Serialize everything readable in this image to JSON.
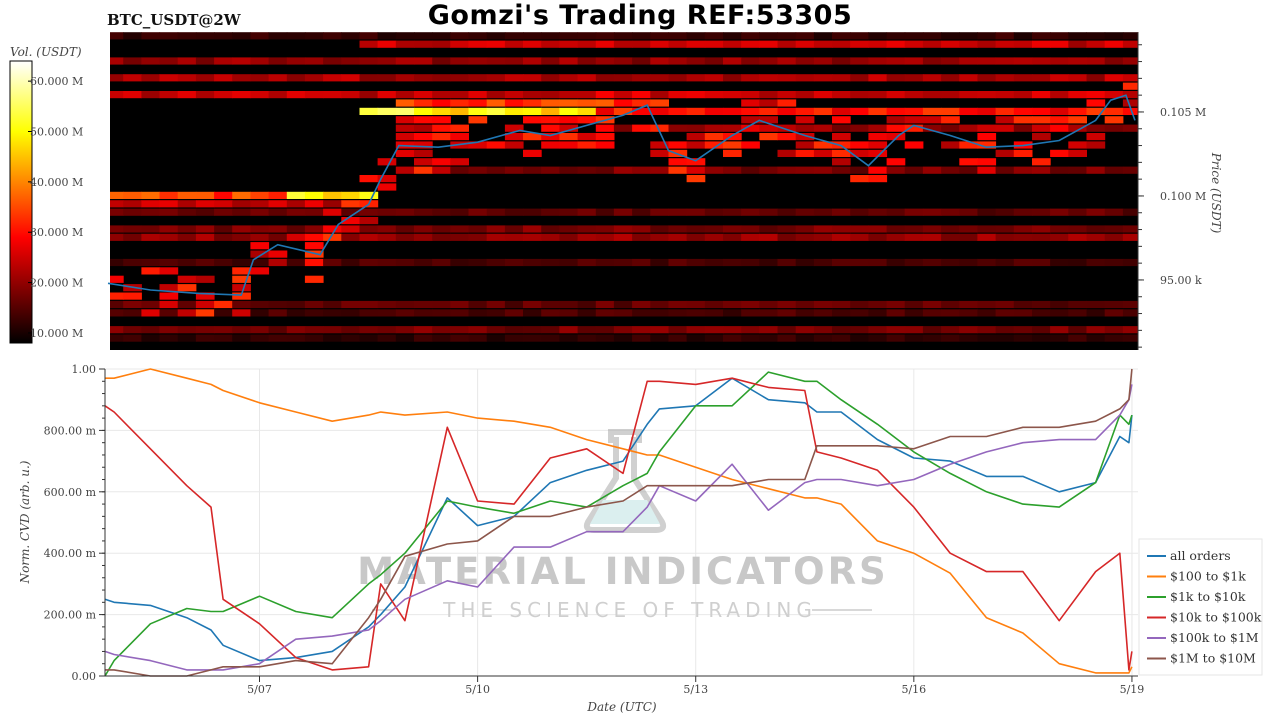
{
  "header": {
    "title": "Gomzi's Trading REF:53305",
    "symbol": "BTC_USDT@2W"
  },
  "watermark": {
    "brand": "MATERIAL INDICATORS",
    "tagline": "THE SCIENCE OF TRADING"
  },
  "chart_data": [
    {
      "type": "heatmap",
      "ylabel": "Price (USDT)",
      "ylim": [
        90830,
        109700
      ],
      "xlim": [
        "5/04 21:00",
        "5/19 02:00"
      ],
      "yticks": [
        {
          "value": 95000,
          "label": "95.00 k"
        },
        {
          "value": 100000,
          "label": "0.100 M"
        },
        {
          "value": 105000,
          "label": "0.105 M"
        }
      ],
      "colorbar": {
        "label": "Vol. (USDT)",
        "colormap": "hot",
        "range": [
          8000000,
          64000000
        ],
        "ticks": [
          {
            "value": 10000000,
            "label": "10.000 M"
          },
          {
            "value": 20000000,
            "label": "20.000 M"
          },
          {
            "value": 30000000,
            "label": "30.000 M"
          },
          {
            "value": 40000000,
            "label": "40.000 M"
          },
          {
            "value": 50000000,
            "label": "50.000 M"
          },
          {
            "value": 60000000,
            "label": "60.000 M"
          }
        ]
      },
      "liquidity_bands": [
        {
          "price": 109500,
          "from": "5/04 21:00",
          "to": "5/19 02:00",
          "vol": 12000000
        },
        {
          "price": 109000,
          "from": "5/08 12:00",
          "to": "5/19 02:00",
          "vol": 24000000
        },
        {
          "price": 108000,
          "from": "5/04 21:00",
          "to": "5/19 02:00",
          "vol": 20000000
        },
        {
          "price": 107000,
          "from": "5/04 21:00",
          "to": "5/19 02:00",
          "vol": 22000000
        },
        {
          "price": 106000,
          "from": "5/04 21:00",
          "to": "5/19 02:00",
          "vol": 24000000
        },
        {
          "price": 105500,
          "from": "5/09 00:00",
          "to": "5/12 12:00",
          "vol": 32000000
        },
        {
          "price": 105000,
          "from": "5/08 12:00",
          "to": "5/11 12:00",
          "vol": 50000000
        },
        {
          "price": 105000,
          "from": "5/11 12:00",
          "to": "5/19 02:00",
          "vol": 30000000
        },
        {
          "price": 104000,
          "from": "5/12 00:00",
          "to": "5/19 02:00",
          "vol": 20000000
        },
        {
          "price": 101500,
          "from": "5/09 12:00",
          "to": "5/19 02:00",
          "vol": 18000000
        },
        {
          "price": 100000,
          "from": "5/04 21:00",
          "to": "5/07 12:00",
          "vol": 34000000
        },
        {
          "price": 100000,
          "from": "5/07 12:00",
          "to": "5/08 12:00",
          "vol": 48000000
        },
        {
          "price": 99500,
          "from": "5/04 21:00",
          "to": "5/08 12:00",
          "vol": 24000000
        },
        {
          "price": 99000,
          "from": "5/04 21:00",
          "to": "5/19 02:00",
          "vol": 16000000
        },
        {
          "price": 98000,
          "from": "5/04 21:00",
          "to": "5/19 02:00",
          "vol": 18000000
        },
        {
          "price": 97500,
          "from": "5/04 21:00",
          "to": "5/19 02:00",
          "vol": 20000000
        },
        {
          "price": 96000,
          "from": "5/04 21:00",
          "to": "5/19 02:00",
          "vol": 14000000
        },
        {
          "price": 93500,
          "from": "5/04 21:00",
          "to": "5/19 02:00",
          "vol": 16000000
        },
        {
          "price": 93000,
          "from": "5/04 21:00",
          "to": "5/19 02:00",
          "vol": 14000000
        },
        {
          "price": 92000,
          "from": "5/04 21:00",
          "to": "5/19 02:00",
          "vol": 18000000
        },
        {
          "price": 91500,
          "from": "5/04 21:00",
          "to": "5/19 02:00",
          "vol": 12000000
        }
      ],
      "price_line": {
        "color": "#1f77b4",
        "x": [
          "5/04 22:00",
          "5/05 12:00",
          "5/06 04:00",
          "5/06 18:00",
          "5/06 22:00",
          "5/07 06:00",
          "5/07 20:00",
          "5/08 02:00",
          "5/08 12:00",
          "5/08 16:00",
          "5/08 22:00",
          "5/09 11:00",
          "5/10 00:00",
          "5/10 14:00",
          "5/11 00:00",
          "5/11 12:00",
          "5/12 00:00",
          "5/12 08:00",
          "5/12 15:00",
          "5/13 00:00",
          "5/13 12:00",
          "5/13 21:00",
          "5/14 12:00",
          "5/15 00:00",
          "5/15 09:00",
          "5/15 19:00",
          "5/16 00:00",
          "5/16 12:00",
          "5/17 00:00",
          "5/17 12:00",
          "5/18 00:00",
          "5/18 12:00",
          "5/18 17:00",
          "5/18 22:00",
          "5/19 01:00"
        ],
        "y": [
          94800,
          94400,
          94200,
          94100,
          96200,
          97100,
          96500,
          98300,
          99500,
          101000,
          103000,
          102900,
          103200,
          103900,
          103600,
          104200,
          104800,
          105400,
          102700,
          102100,
          103600,
          104500,
          103600,
          103000,
          101800,
          103600,
          104200,
          103600,
          102900,
          103000,
          103300,
          104500,
          105700,
          106000,
          104500
        ]
      }
    },
    {
      "type": "line",
      "xlabel": "Date (UTC)",
      "ylabel": "Norm. CVD (arb. u.)",
      "ylim": [
        0,
        1
      ],
      "xlim": [
        "5/04 21:00",
        "5/19 02:00"
      ],
      "grid": true,
      "legend": "right, bottom (outside plot)",
      "xticks": [
        {
          "value": "5/07 00:00",
          "label": "5/07"
        },
        {
          "value": "5/10 00:00",
          "label": "5/10"
        },
        {
          "value": "5/13 00:00",
          "label": "5/13"
        },
        {
          "value": "5/16 00:00",
          "label": "5/16"
        },
        {
          "value": "5/19 00:00",
          "label": "5/19"
        }
      ],
      "yticks": [
        {
          "value": 0,
          "label": "0.00"
        },
        {
          "value": 0.2,
          "label": "200.00 m"
        },
        {
          "value": 0.4,
          "label": "400.00 m"
        },
        {
          "value": 0.6,
          "label": "600.00 m"
        },
        {
          "value": 0.8,
          "label": "800.00 m"
        },
        {
          "value": 1,
          "label": "1.00"
        }
      ],
      "x": [
        "5/04 21:00",
        "5/05 00:00",
        "5/05 12:00",
        "5/06 00:00",
        "5/06 08:00",
        "5/06 12:00",
        "5/07 00:00",
        "5/07 12:00",
        "5/08 00:00",
        "5/08 12:00",
        "5/08 16:00",
        "5/09 00:00",
        "5/09 14:00",
        "5/10 00:00",
        "5/10 12:00",
        "5/11 00:00",
        "5/11 12:00",
        "5/12 00:00",
        "5/12 08:00",
        "5/12 12:00",
        "5/13 00:00",
        "5/13 12:00",
        "5/14 00:00",
        "5/14 12:00",
        "5/14 16:00",
        "5/15 00:00",
        "5/15 12:00",
        "5/16 00:00",
        "5/16 12:00",
        "5/17 00:00",
        "5/17 12:00",
        "5/18 00:00",
        "5/18 12:00",
        "5/18 20:00",
        "5/18 23:00",
        "5/19 00:00"
      ],
      "series": [
        {
          "name": "all orders",
          "color": "#1f77b4",
          "values": [
            0.25,
            0.24,
            0.23,
            0.19,
            0.15,
            0.1,
            0.05,
            0.06,
            0.08,
            0.16,
            0.2,
            0.29,
            0.58,
            0.49,
            0.52,
            0.63,
            0.67,
            0.7,
            0.82,
            0.87,
            0.88,
            0.97,
            0.9,
            0.89,
            0.86,
            0.86,
            0.77,
            0.71,
            0.7,
            0.65,
            0.65,
            0.6,
            0.63,
            0.78,
            0.76,
            0.85
          ]
        },
        {
          "name": "$100 to $1k",
          "color": "#ff7f0e",
          "values": [
            0.97,
            0.97,
            1.0,
            0.97,
            0.95,
            0.93,
            0.89,
            0.86,
            0.83,
            0.85,
            0.86,
            0.85,
            0.86,
            0.84,
            0.83,
            0.81,
            0.77,
            0.74,
            0.72,
            0.72,
            0.68,
            0.64,
            0.61,
            0.58,
            0.58,
            0.56,
            0.44,
            0.4,
            0.335,
            0.19,
            0.14,
            0.04,
            0.01,
            0.01,
            0.01,
            0.03
          ]
        },
        {
          "name": "$1k to $10k",
          "color": "#2ca02c",
          "values": [
            0.0,
            0.05,
            0.17,
            0.22,
            0.21,
            0.21,
            0.26,
            0.21,
            0.19,
            0.3,
            0.33,
            0.4,
            0.57,
            0.55,
            0.53,
            0.57,
            0.55,
            0.62,
            0.66,
            0.73,
            0.88,
            0.88,
            0.99,
            0.96,
            0.96,
            0.9,
            0.82,
            0.73,
            0.66,
            0.6,
            0.56,
            0.55,
            0.63,
            0.85,
            0.82,
            0.85
          ]
        },
        {
          "name": "$10k to $100k",
          "color": "#d62728",
          "values": [
            0.88,
            0.86,
            0.74,
            0.62,
            0.55,
            0.25,
            0.17,
            0.06,
            0.02,
            0.03,
            0.3,
            0.18,
            0.81,
            0.57,
            0.56,
            0.71,
            0.74,
            0.66,
            0.96,
            0.96,
            0.95,
            0.97,
            0.94,
            0.93,
            0.73,
            0.71,
            0.67,
            0.55,
            0.4,
            0.34,
            0.34,
            0.18,
            0.34,
            0.4,
            0.02,
            0.08
          ]
        },
        {
          "name": "$100k to $1M",
          "color": "#9467bd",
          "values": [
            0.08,
            0.07,
            0.05,
            0.02,
            0.02,
            0.02,
            0.04,
            0.12,
            0.13,
            0.15,
            0.18,
            0.25,
            0.31,
            0.29,
            0.42,
            0.42,
            0.47,
            0.47,
            0.55,
            0.62,
            0.57,
            0.69,
            0.54,
            0.63,
            0.64,
            0.64,
            0.62,
            0.64,
            0.69,
            0.73,
            0.76,
            0.77,
            0.77,
            0.85,
            0.9,
            0.95
          ]
        },
        {
          "name": "$1M to $10M",
          "color": "#8c564b",
          "values": [
            0.02,
            0.02,
            0.0,
            0.0,
            0.02,
            0.03,
            0.03,
            0.05,
            0.04,
            0.19,
            0.25,
            0.39,
            0.43,
            0.44,
            0.52,
            0.52,
            0.55,
            0.57,
            0.62,
            0.62,
            0.62,
            0.62,
            0.64,
            0.64,
            0.75,
            0.75,
            0.75,
            0.74,
            0.78,
            0.78,
            0.81,
            0.81,
            0.83,
            0.87,
            0.9,
            1.0
          ]
        }
      ]
    }
  ]
}
